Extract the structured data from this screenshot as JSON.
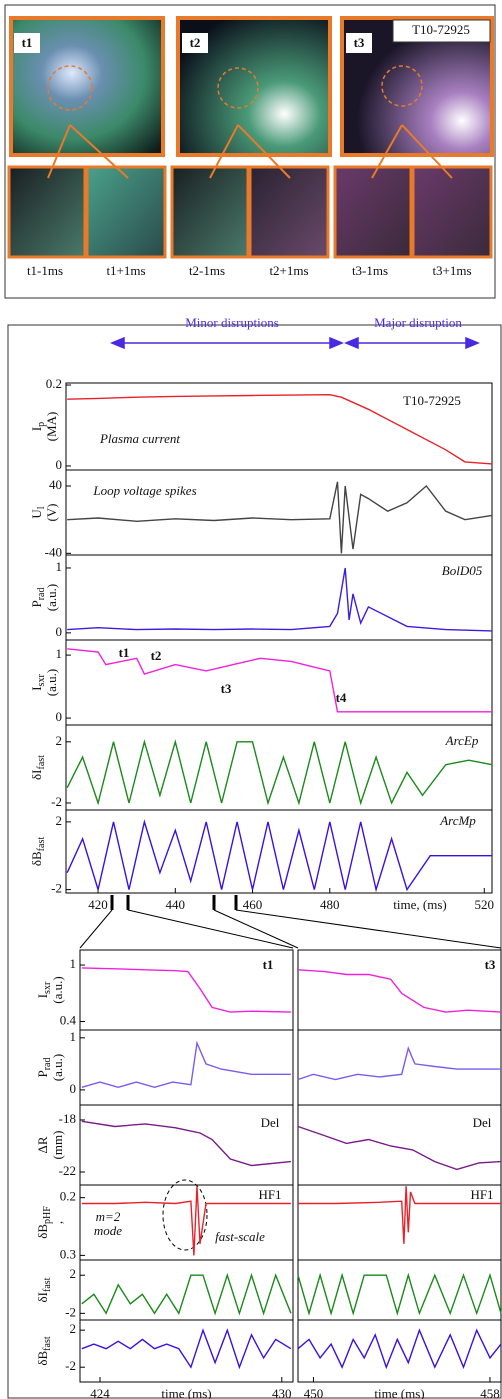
{
  "photos": {
    "badge": "T10-72925",
    "frames": [
      "t1",
      "t2",
      "t3"
    ],
    "captions": [
      "t1-1ms",
      "t1+1ms",
      "t2-1ms",
      "t2+1ms",
      "t3-1ms",
      "t3+1ms"
    ]
  },
  "headers": {
    "minor": "Minor disruptions",
    "major": "Major disruption"
  },
  "chart_data": [
    {
      "type": "line",
      "ylabel": {
        "sym": "I",
        "sub": "p",
        "unit": "(MA)"
      },
      "xlim": [
        411.7,
        522
      ],
      "ylim": [
        -0.01,
        0.205
      ],
      "yticks": [
        0,
        0.2
      ],
      "x": [
        412,
        420,
        430,
        440,
        450,
        460,
        470,
        480,
        483,
        490,
        500,
        510,
        515,
        522
      ],
      "series": [
        {
          "color": "#e8222a",
          "values": [
            0.165,
            0.167,
            0.17,
            0.172,
            0.173,
            0.174,
            0.175,
            0.176,
            0.17,
            0.14,
            0.09,
            0.04,
            0.01,
            0.005
          ]
        }
      ],
      "annotations": [
        "T10-72925",
        "Plasma current"
      ]
    },
    {
      "type": "line",
      "ylabel": {
        "sym": "U",
        "sub": "l",
        "unit": "(V)"
      },
      "xlim": [
        411.7,
        522
      ],
      "ylim": [
        -42,
        59
      ],
      "yticks": [
        -40,
        40
      ],
      "x": [
        412,
        420,
        430,
        440,
        450,
        460,
        470,
        480,
        482,
        483,
        484,
        486,
        488,
        490,
        495,
        500,
        505,
        510,
        515,
        522
      ],
      "series": [
        {
          "color": "#444444",
          "values": [
            0,
            2,
            -2,
            1,
            -1,
            2,
            0,
            1,
            45,
            -40,
            40,
            -35,
            30,
            25,
            10,
            20,
            40,
            10,
            0,
            5
          ]
        }
      ],
      "annotations": [
        "Loop voltage spikes"
      ]
    },
    {
      "type": "line",
      "ylabel": {
        "sym": "P",
        "sub": "rad",
        "unit": "(a.u.)"
      },
      "xlim": [
        411.7,
        522
      ],
      "ylim": [
        -0.11,
        1.2
      ],
      "yticks": [
        0,
        1
      ],
      "x": [
        412,
        420,
        430,
        440,
        450,
        460,
        470,
        480,
        482,
        484,
        485,
        486,
        488,
        490,
        500,
        510,
        522
      ],
      "series": [
        {
          "color": "#3a1ee0",
          "values": [
            0.05,
            0.08,
            0.05,
            0.06,
            0.05,
            0.06,
            0.05,
            0.1,
            0.3,
            1.0,
            0.2,
            0.6,
            0.15,
            0.4,
            0.1,
            0.05,
            0.03
          ]
        }
      ],
      "annotations": [
        "BolD05"
      ]
    },
    {
      "type": "line",
      "ylabel": {
        "sym": "I",
        "sub": "sxr",
        "unit": "(a.u.)"
      },
      "xlim": [
        411.7,
        522
      ],
      "ylim": [
        -0.11,
        1.24
      ],
      "yticks": [
        0,
        1
      ],
      "x": [
        412,
        420,
        422,
        430,
        432,
        440,
        448,
        455,
        462,
        470,
        480,
        482,
        500,
        522
      ],
      "series": [
        {
          "color": "#ee22dd",
          "values": [
            1.1,
            1.05,
            0.85,
            0.95,
            0.7,
            0.85,
            0.75,
            0.85,
            0.95,
            0.9,
            0.75,
            0.1,
            0.1,
            0.1
          ]
        }
      ],
      "annotations": [
        "t1",
        "t2",
        "t3",
        "t4"
      ]
    },
    {
      "type": "line",
      "ylabel": {
        "sym": "δI",
        "sub": "fast",
        "unit": ""
      },
      "xlim": [
        411.7,
        522
      ],
      "ylim": [
        -2.46,
        3.1
      ],
      "yticks": [
        -2,
        2
      ],
      "x": [
        412,
        416,
        420,
        424,
        428,
        432,
        436,
        440,
        444,
        448,
        452,
        456,
        460,
        464,
        468,
        472,
        476,
        480,
        484,
        488,
        492,
        496,
        500,
        504,
        510,
        516,
        522
      ],
      "series": [
        {
          "color": "#1a8a1a",
          "values": [
            -1,
            1,
            -2,
            2,
            -2,
            2,
            -1.5,
            2,
            -2,
            2,
            -2,
            2,
            2,
            -2,
            1,
            -2,
            2,
            -2,
            2,
            -2,
            1,
            -2,
            0,
            -1.5,
            0.5,
            0.8,
            0.5
          ]
        }
      ],
      "annotations": [
        "ArcEp"
      ]
    },
    {
      "type": "line",
      "ylabel": {
        "sym": "δB",
        "sub": "fast",
        "unit": ""
      },
      "xlim": [
        411.7,
        522
      ],
      "ylim": [
        -2.2,
        2.7
      ],
      "yticks": [
        -2,
        2
      ],
      "xticks": [
        420,
        440,
        460,
        480,
        520
      ],
      "xlabel": "time, (ms)",
      "x": [
        412,
        416,
        420,
        424,
        428,
        432,
        436,
        440,
        444,
        448,
        452,
        456,
        460,
        464,
        468,
        472,
        476,
        480,
        484,
        488,
        492,
        496,
        500,
        506,
        512,
        522
      ],
      "series": [
        {
          "color": "#3a10e0",
          "values": [
            -1,
            1,
            -2,
            2,
            -2,
            2,
            -1,
            1.5,
            -1.5,
            2,
            -2,
            2,
            -2,
            2,
            -2,
            1.5,
            -2,
            2,
            -2,
            2,
            -2,
            1,
            -2,
            0,
            0,
            0
          ]
        }
      ],
      "annotations": [
        "ArcMp"
      ]
    },
    {
      "type": "line",
      "ylabel": {
        "sym": "I",
        "sub": "sxr",
        "unit": "(a.u.)"
      },
      "xlim": [
        423.34,
        430.37
      ],
      "ylim": [
        0.31,
        1.16
      ],
      "yticks": [
        {
          "value": 0.4,
          "label": "0.4"
        },
        1
      ],
      "x": [
        423.4,
        424.5,
        425.5,
        426.5,
        426.9,
        427.3,
        427.7,
        428.3,
        429,
        430.3
      ],
      "series": [
        {
          "color": "#ee22dd",
          "values": [
            0.97,
            0.96,
            0.95,
            0.94,
            0.93,
            0.75,
            0.55,
            0.5,
            0.51,
            0.5
          ]
        }
      ],
      "annotations": [
        "t1"
      ]
    },
    {
      "type": "line",
      "ylabel": {
        "sym": "P",
        "sub": "rad",
        "unit": "(a.u.)"
      },
      "xlim": [
        423.34,
        430.37
      ],
      "ylim": [
        -0.29,
        1.15
      ],
      "yticks": [
        0,
        1
      ],
      "x": [
        423.4,
        424,
        424.6,
        425.2,
        425.8,
        426.4,
        427,
        427.2,
        427.5,
        428,
        429,
        430.3
      ],
      "series": [
        {
          "color": "#7a5cf0",
          "values": [
            0.05,
            0.15,
            0.05,
            0.15,
            0.05,
            0.15,
            0.1,
            0.9,
            0.5,
            0.4,
            0.3,
            0.3
          ]
        }
      ]
    },
    {
      "type": "line",
      "ylabel": {
        "sym": "ΔR",
        "sub": "",
        "unit": "(mm)"
      },
      "xlim": [
        423.34,
        430.37
      ],
      "ylim": [
        -23,
        -16.85
      ],
      "yticks": [
        -22,
        -18
      ],
      "x": [
        423.4,
        424.5,
        425.5,
        426.5,
        426.9,
        427.3,
        427.7,
        428.3,
        429,
        430.3
      ],
      "series": [
        {
          "color": "#7a1a8a",
          "values": [
            -18.1,
            -18.5,
            -18.3,
            -18.6,
            -18.8,
            -19,
            -19.5,
            -21,
            -21.5,
            -21.2
          ]
        }
      ],
      "annotations": [
        "Del"
      ]
    },
    {
      "type": "line",
      "ylabel": {
        "sym": "δB",
        "sub": "pHF",
        "unit": ","
      },
      "xlim": [
        423.34,
        430.37
      ],
      "ylim": [
        -0.34,
        0.31
      ],
      "yticks": [
        {
          "value": -0.3,
          "label": "0.3"
        },
        0.2
      ],
      "x": [
        423.4,
        424.5,
        425.5,
        426.5,
        427,
        427.1,
        427.2,
        427.3,
        427.5,
        428,
        429,
        430.3
      ],
      "series": [
        {
          "color": "#e8222a",
          "values": [
            0.15,
            0.15,
            0.16,
            0.15,
            0.17,
            -0.3,
            0.3,
            -0.2,
            0.15,
            0.15,
            0.15,
            0.15
          ]
        }
      ],
      "annotations": [
        "HF1",
        "m=2",
        "mode",
        "fast-scale"
      ]
    },
    {
      "type": "line",
      "ylabel": {
        "sym": "δI",
        "sub": "fast",
        "unit": ""
      },
      "xlim": [
        423.34,
        430.37
      ],
      "ylim": [
        -2.7,
        3.6
      ],
      "yticks": [
        -2,
        2
      ],
      "x": [
        423.4,
        423.8,
        424.2,
        424.6,
        425,
        425.4,
        425.8,
        426.2,
        426.6,
        427,
        427.4,
        427.8,
        428.2,
        428.6,
        429,
        429.4,
        429.8,
        430.3
      ],
      "series": [
        {
          "color": "#1a8a1a",
          "values": [
            -1,
            0,
            -2,
            1,
            -1,
            0,
            -2,
            0,
            -2,
            2,
            2,
            -2,
            2,
            -2,
            2,
            -2,
            2,
            -2
          ]
        }
      ]
    },
    {
      "type": "line",
      "ylabel": {
        "sym": "δB",
        "sub": "fast",
        "unit": ""
      },
      "xlim": [
        423.34,
        430.37
      ],
      "ylim": [
        -3.6,
        3.1
      ],
      "yticks": [
        -2,
        2
      ],
      "xticks": [
        424,
        430
      ],
      "xlabel": "time (ms)",
      "x": [
        423.4,
        423.8,
        424.2,
        424.6,
        425,
        425.4,
        425.8,
        426.2,
        426.6,
        427,
        427.4,
        427.8,
        428.2,
        428.6,
        429,
        429.4,
        429.8,
        430.3
      ],
      "series": [
        {
          "color": "#3a10e0",
          "values": [
            0,
            0.5,
            0,
            0.8,
            0,
            1,
            0,
            0.5,
            0,
            -2,
            2,
            -1.5,
            2,
            -2,
            1.5,
            -1,
            1,
            0
          ]
        }
      ]
    },
    {
      "type": "line",
      "xlim": [
        449.3,
        458.5
      ],
      "ylim": [
        0.31,
        1.16
      ],
      "x": [
        449.3,
        450.5,
        451.5,
        452.5,
        453.5,
        454,
        455,
        456,
        457,
        458.5
      ],
      "series": [
        {
          "color": "#ee22dd",
          "values": [
            0.95,
            0.93,
            0.9,
            0.9,
            0.85,
            0.7,
            0.55,
            0.5,
            0.52,
            0.5
          ]
        }
      ],
      "annotations": [
        "t3"
      ]
    },
    {
      "type": "line",
      "xlim": [
        449.3,
        458.5
      ],
      "ylim": [
        -0.29,
        1.15
      ],
      "x": [
        449.3,
        450,
        451,
        452,
        453,
        454,
        454.3,
        454.6,
        455.5,
        456.5,
        458.5
      ],
      "series": [
        {
          "color": "#7a5cf0",
          "values": [
            0.2,
            0.3,
            0.2,
            0.3,
            0.25,
            0.3,
            0.8,
            0.5,
            0.45,
            0.4,
            0.4
          ]
        }
      ]
    },
    {
      "type": "line",
      "xlim": [
        449.3,
        458.5
      ],
      "ylim": [
        -23,
        -16.85
      ],
      "x": [
        449.3,
        450.5,
        451.5,
        452.5,
        453.5,
        454.5,
        455.5,
        456.5,
        457.5,
        458.5
      ],
      "series": [
        {
          "color": "#7a1a8a",
          "values": [
            -18.5,
            -19.2,
            -19.8,
            -19.5,
            -20,
            -20.3,
            -21.2,
            -21.8,
            -21.3,
            -21.2
          ]
        }
      ],
      "annotations": [
        "Del"
      ]
    },
    {
      "type": "line",
      "xlim": [
        449.3,
        458.5
      ],
      "ylim": [
        -0.34,
        0.31
      ],
      "x": [
        449.3,
        451,
        453,
        454,
        454.1,
        454.2,
        454.3,
        454.4,
        454.6,
        455,
        457,
        458.5
      ],
      "series": [
        {
          "color": "#e8222a",
          "values": [
            0.15,
            0.15,
            0.16,
            0.17,
            -0.2,
            0.3,
            -0.1,
            0.25,
            0.15,
            0.15,
            0.15,
            0.15
          ]
        }
      ],
      "annotations": [
        "HF1"
      ]
    },
    {
      "type": "line",
      "xlim": [
        449.3,
        458.5
      ],
      "ylim": [
        -2.7,
        3.6
      ],
      "x": [
        449.3,
        449.8,
        450.3,
        450.8,
        451.3,
        451.8,
        452.3,
        452.8,
        453.3,
        453.8,
        454.3,
        454.8,
        455.5,
        456.2,
        456.8,
        457.4,
        458,
        458.5
      ],
      "series": [
        {
          "color": "#1a8a1a",
          "values": [
            2,
            -2,
            2,
            -2,
            2,
            -2,
            2,
            2,
            2,
            -2,
            2,
            -2,
            2,
            -2,
            2,
            -2,
            2,
            -2
          ]
        }
      ]
    },
    {
      "type": "line",
      "xlim": [
        449.3,
        458.5
      ],
      "ylim": [
        -3.6,
        3.1
      ],
      "xticks": [
        450,
        458
      ],
      "xlabel": "time (ms)",
      "x": [
        449.3,
        449.8,
        450.3,
        450.8,
        451.3,
        451.8,
        452.3,
        452.8,
        453.3,
        453.8,
        454.3,
        454.8,
        455.5,
        456.2,
        456.8,
        457.4,
        458,
        458.5
      ],
      "series": [
        {
          "color": "#3a10e0",
          "values": [
            0,
            1,
            -1,
            0.5,
            -2,
            1,
            -1,
            1.5,
            -2,
            1,
            -1.5,
            2,
            -2,
            1.5,
            -2,
            2,
            -1,
            0.5
          ]
        }
      ]
    }
  ]
}
